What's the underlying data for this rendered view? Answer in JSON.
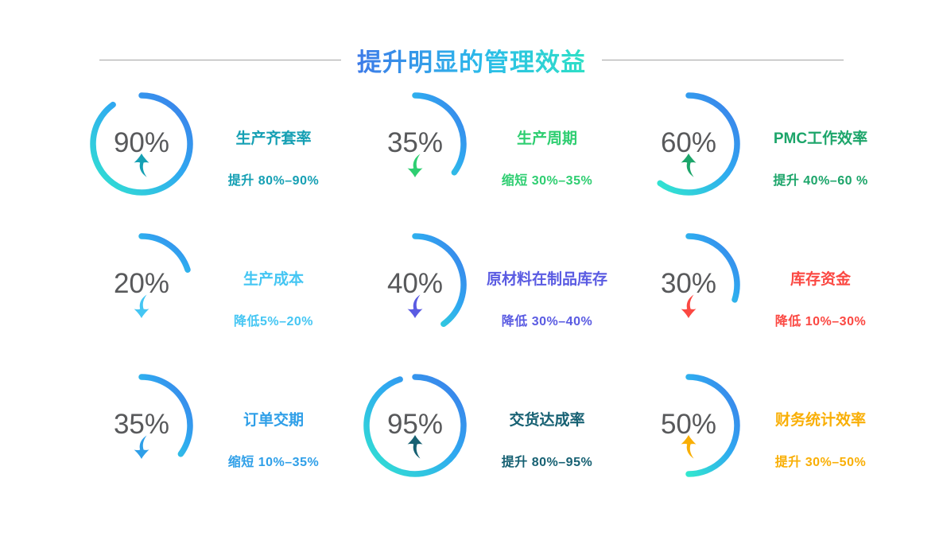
{
  "page": {
    "background": "#ffffff"
  },
  "header": {
    "title": "提升明显的管理效益",
    "title_gradient": [
      "#3D7AE8",
      "#2BBBEA",
      "#2FE0C6"
    ],
    "divider_color": "#A3A3A3"
  },
  "chart_data": {
    "type": "pie",
    "subtype": "donut-gauge-grid",
    "title": "提升明显的管理效益",
    "grid": "3 columns x 3 rows",
    "legend_position": "none",
    "value_color": "#58595B",
    "arc_gradient": [
      "#3D7BE9",
      "#2FA9F0",
      "#32E6CF"
    ],
    "gauges": [
      {
        "label": "生产齐套率",
        "value_text": "90%",
        "percent": 90,
        "direction": "up",
        "change_text": "提升 80%–90%",
        "color": "#16A0B4"
      },
      {
        "label": "生产周期",
        "value_text": "35%",
        "percent": 35,
        "direction": "down",
        "change_text": "缩短 30%–35%",
        "color": "#2ECE71"
      },
      {
        "label": "PMC工作效率",
        "value_text": "60%",
        "percent": 60,
        "direction": "up",
        "change_text": "提升 40%–60 %",
        "color": "#1CA56A"
      },
      {
        "label": "生产成本",
        "value_text": "20%",
        "percent": 20,
        "direction": "down",
        "change_text": "降低5%–20%",
        "color": "#45C6F3"
      },
      {
        "label": "原材料在制品库存",
        "value_text": "40%",
        "percent": 40,
        "direction": "down",
        "change_text": "降低 30%–40%",
        "color": "#5A5BE2"
      },
      {
        "label": "库存资金",
        "value_text": "30%",
        "percent": 30,
        "direction": "down",
        "change_text": "降低 10%–30%",
        "color": "#FB4842"
      },
      {
        "label": "订单交期",
        "value_text": "35%",
        "percent": 35,
        "direction": "down",
        "change_text": "缩短 10%–35%",
        "color": "#2F9FE8"
      },
      {
        "label": "交货达成率",
        "value_text": "95%",
        "percent": 95,
        "direction": "up",
        "change_text": "提升 80%–95%",
        "color": "#176173"
      },
      {
        "label": "财务统计效率",
        "value_text": "50%",
        "percent": 50,
        "direction": "up",
        "change_text": "提升 30%–50%",
        "color": "#F9AF06"
      }
    ]
  }
}
